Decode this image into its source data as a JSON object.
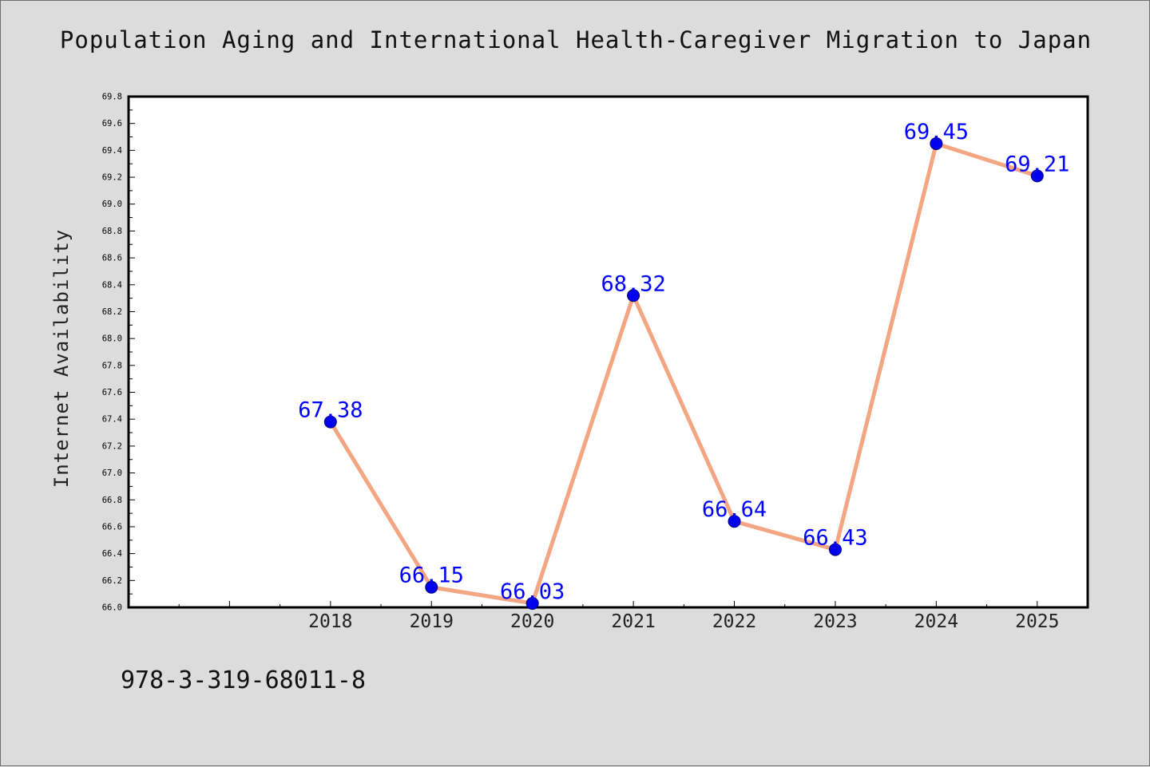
{
  "title": "Population Aging and International Health-Caregiver Migration to Japan",
  "footer_text": "978-3-319-68011-8",
  "colors": {
    "background": "#dcdcdc",
    "plot_background": "#ffffff",
    "line": "#f4a582",
    "marker": "#0000ee",
    "data_label": "#0000ff"
  },
  "chart_data": {
    "type": "line",
    "title": "Population Aging and International Health-Caregiver Migration to Japan",
    "xlabel": "",
    "ylabel": "Internet Availability",
    "x": [
      2018,
      2019,
      2020,
      2021,
      2022,
      2023,
      2024,
      2025
    ],
    "xlim": [
      2016,
      2025.5
    ],
    "ylim": [
      66.0,
      69.8
    ],
    "yticks": [
      "66.0",
      "66.2",
      "66.4",
      "66.6",
      "66.8",
      "67.0",
      "67.2",
      "67.4",
      "67.6",
      "67.8",
      "68.0",
      "68.2",
      "68.4",
      "68.6",
      "68.8",
      "69.0",
      "69.2",
      "69.4",
      "69.6",
      "69.8"
    ],
    "xticks": [
      "2018",
      "2019",
      "2020",
      "2021",
      "2022",
      "2023",
      "2024",
      "2025"
    ],
    "series": [
      {
        "values": [
          67.38,
          66.15,
          66.03,
          68.32,
          66.64,
          66.43,
          69.45,
          69.21
        ],
        "labels": [
          "67.38",
          "66.15",
          "66.03",
          "68.32",
          "66.64",
          "66.43",
          "69.45",
          "69.21"
        ]
      }
    ],
    "grid": false,
    "legend": "none"
  }
}
